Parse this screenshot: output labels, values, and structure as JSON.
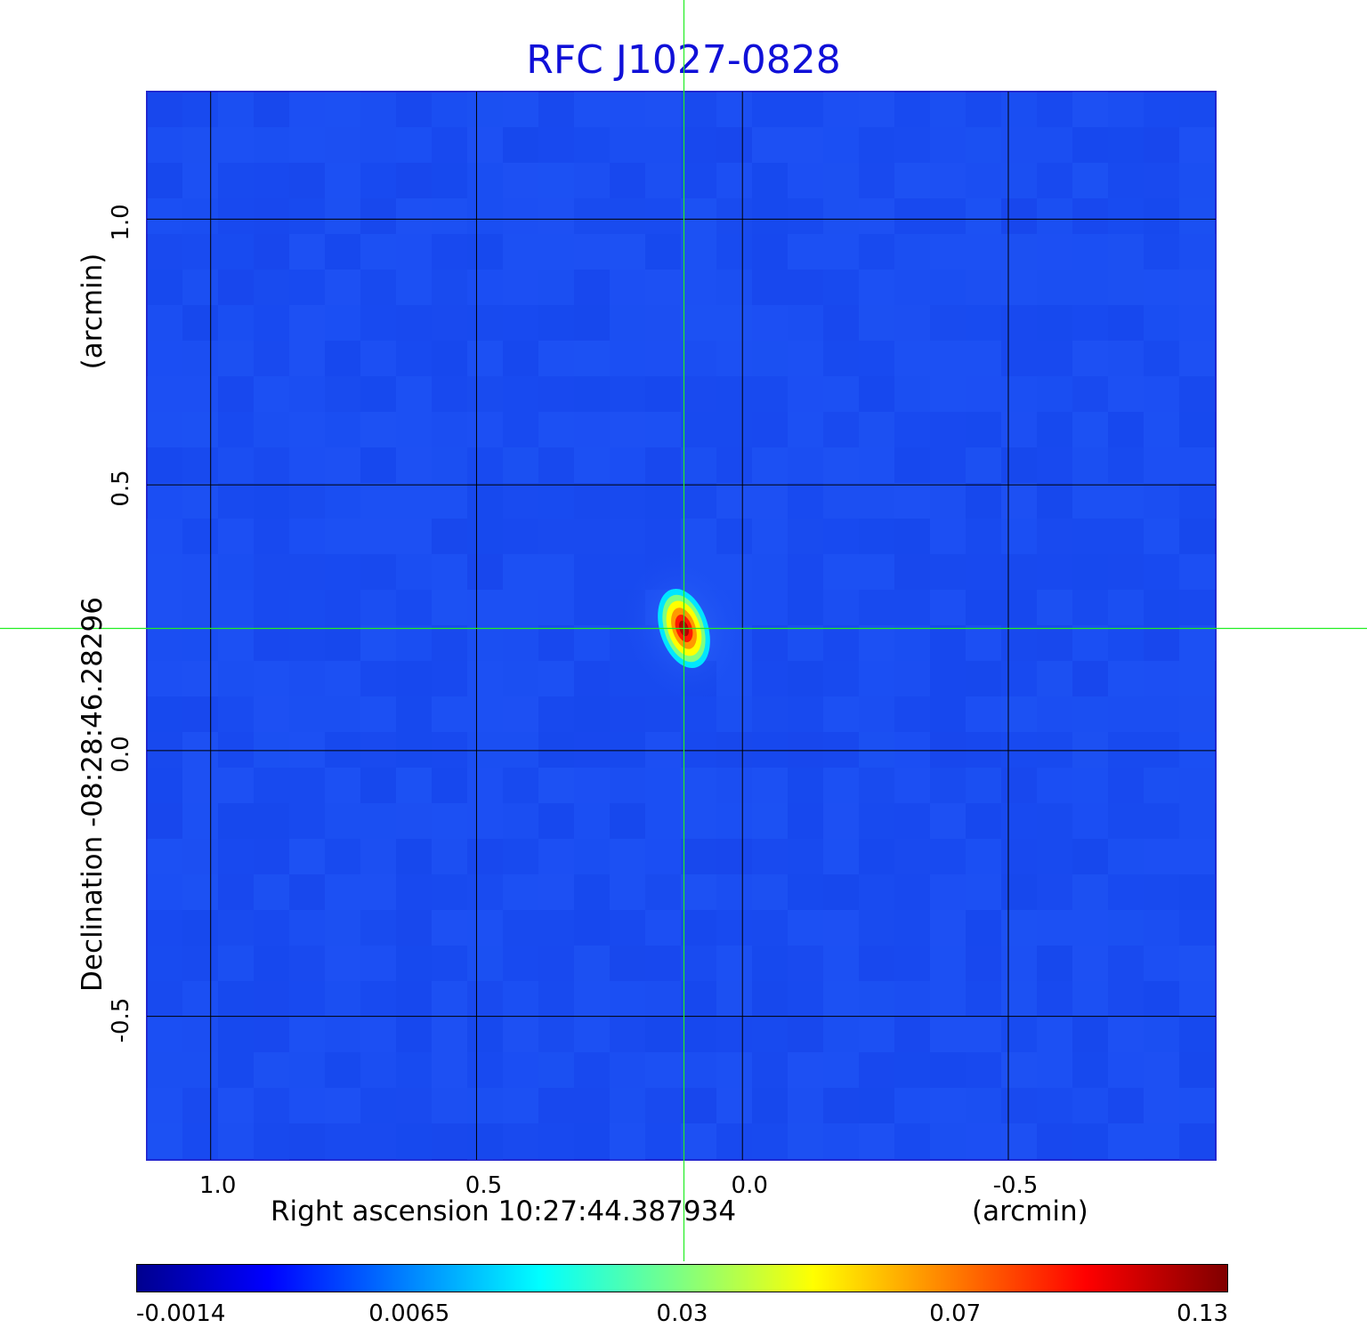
{
  "chart_data": {
    "type": "heatmap",
    "title": "RFC J1027-0828",
    "xlabel": "Right ascension  10:27:44.387934",
    "xunit": "(arcmin)",
    "ylabel": "Declination  -08:28:46.28296",
    "yunit": "(arcmin)",
    "x_range": [
      1.12,
      -0.89
    ],
    "y_range": [
      -0.77,
      1.24
    ],
    "x_ticks": [
      {
        "value": 1.0,
        "label": "1.0"
      },
      {
        "value": 0.5,
        "label": "0.5"
      },
      {
        "value": 0.0,
        "label": "0.0"
      },
      {
        "value": -0.5,
        "label": "-0.5"
      }
    ],
    "y_ticks": [
      {
        "value": 1.0,
        "label": "1.0"
      },
      {
        "value": 0.5,
        "label": "0.5"
      },
      {
        "value": 0.0,
        "label": "0.0"
      },
      {
        "value": -0.5,
        "label": "-0.5"
      }
    ],
    "grid": true,
    "crosshair": {
      "x": 0.11,
      "y": 0.23
    },
    "source_peak": {
      "x": 0.11,
      "y": 0.23,
      "value": 0.13
    },
    "colorbar": {
      "colormap": "jet",
      "ticks": [
        "-0.0014",
        "0.0065",
        "0.03",
        "0.07",
        "0.13"
      ],
      "range": [
        -0.0014,
        0.13
      ]
    },
    "colors": {
      "title": "#1010d8",
      "background": "#1a4df2",
      "crosshair": "#22ee22",
      "grid": "#000000"
    }
  }
}
